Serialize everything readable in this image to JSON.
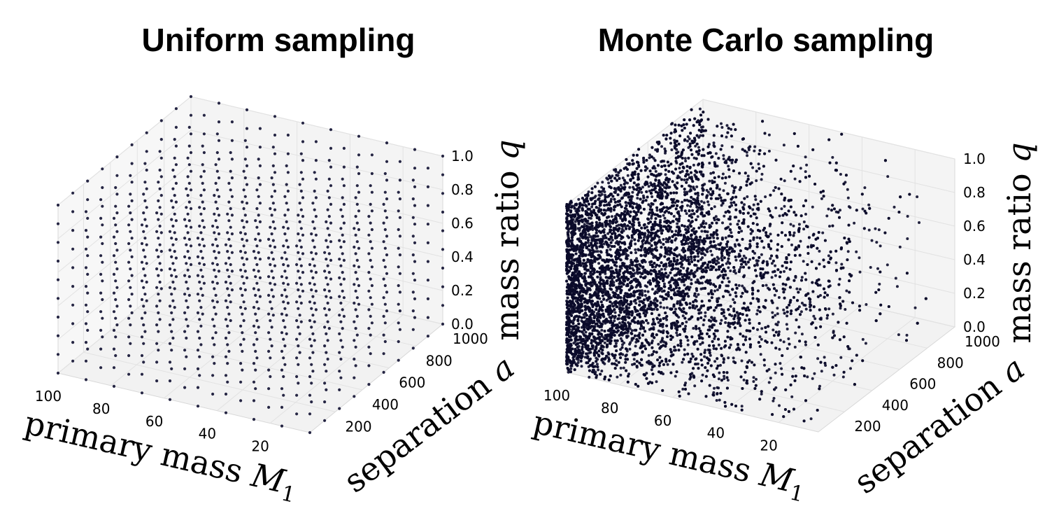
{
  "chart_data": [
    {
      "type": "scatter",
      "projection": "3d",
      "title": "Uniform sampling",
      "xlabel": "primary mass",
      "xlabel_symbol": "M",
      "xlabel_sub": "1",
      "ylabel": "separation",
      "ylabel_symbol": "a",
      "zlabel": "mass ratio",
      "zlabel_symbol": "q",
      "xlim": [
        5,
        100
      ],
      "ylim": [
        10,
        1000
      ],
      "zlim": [
        0.0,
        1.0
      ],
      "xticks": [
        "20",
        "40",
        "60",
        "80",
        "100"
      ],
      "yticks": [
        "200",
        "400",
        "600",
        "800",
        "1000"
      ],
      "zticks": [
        "0.0",
        "0.2",
        "0.4",
        "0.6",
        "0.8",
        "1.0"
      ],
      "sampling": "regular grid",
      "grid_points": {
        "x": 10,
        "y": 10,
        "z": 10
      },
      "point_color": "#1a1a3a",
      "grid": true
    },
    {
      "type": "scatter",
      "projection": "3d",
      "title": "Monte Carlo sampling",
      "xlabel": "primary mass",
      "xlabel_symbol": "M",
      "xlabel_sub": "1",
      "ylabel": "separation",
      "ylabel_symbol": "a",
      "zlabel": "mass ratio",
      "zlabel_symbol": "q",
      "xlim": [
        5,
        100
      ],
      "ylim": [
        10,
        1000
      ],
      "zlim": [
        0.0,
        1.0
      ],
      "xticks": [
        "20",
        "40",
        "60",
        "80",
        "100"
      ],
      "yticks": [
        "200",
        "400",
        "600",
        "800",
        "1000"
      ],
      "zticks": [
        "0.0",
        "0.2",
        "0.4",
        "0.6",
        "0.8",
        "1.0"
      ],
      "sampling": "random; concentrated at low primary mass and low separation",
      "point_color": "#0b0b2a",
      "grid": true
    }
  ]
}
